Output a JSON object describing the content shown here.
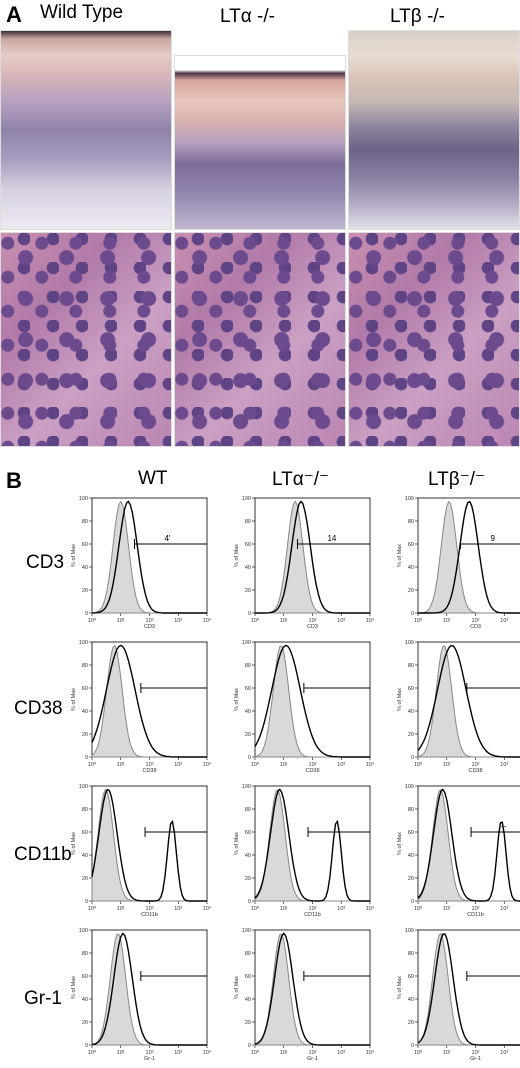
{
  "panel_a": {
    "letter": "A",
    "columns": [
      "Wild Type",
      "LTα -/-",
      "LTβ -/-"
    ]
  },
  "panel_b": {
    "letter": "B",
    "columns": [
      "WT",
      "LTα⁻/⁻",
      "LTβ⁻/⁻"
    ],
    "rows": [
      "CD3",
      "CD38",
      "CD11b",
      "Gr-1"
    ],
    "y_axis_label": "% of Max",
    "y_ticks": [
      "100",
      "80",
      "60",
      "40",
      "20",
      "0"
    ],
    "x_ticks": [
      "10⁰",
      "10¹",
      "10²",
      "10³",
      "10⁴"
    ],
    "gate_labels": [
      [
        "4'",
        "14",
        "9"
      ],
      [
        "",
        "",
        ""
      ],
      [
        "",
        "",
        "--"
      ],
      [
        "",
        "",
        ""
      ]
    ]
  },
  "chart_data": {
    "type": "histogram-grid",
    "xscale": "log",
    "xlim": [
      1,
      10000
    ],
    "ylim": [
      0,
      100
    ],
    "ylabel": "% of Max",
    "rows": [
      {
        "marker": "CD3",
        "xlabel": "CD3",
        "series": [
          {
            "control_peak": 10,
            "sample_peak": 18
          },
          {
            "control_peak": 25,
            "sample_peak": 40
          },
          {
            "control_peak": 12,
            "sample_peak": 60
          }
        ]
      },
      {
        "marker": "CD38",
        "xlabel": "CD38",
        "series": [
          {
            "control_peak": 6,
            "sample_peak": 10
          },
          {
            "control_peak": 8,
            "sample_peak": 12
          },
          {
            "control_peak": 8,
            "sample_peak": 15
          }
        ]
      },
      {
        "marker": "CD11b",
        "xlabel": "CD11b",
        "series": [
          {
            "control_peak": 3,
            "sample_peak": 600
          },
          {
            "control_peak": 6,
            "sample_peak": 700
          },
          {
            "control_peak": 6,
            "sample_peak": 800
          }
        ]
      },
      {
        "marker": "Gr-1",
        "xlabel": "Gr-1",
        "series": [
          {
            "control_peak": 8,
            "sample_peak": 12
          },
          {
            "control_peak": 8,
            "sample_peak": 10
          },
          {
            "control_peak": 6,
            "sample_peak": 8
          }
        ]
      }
    ]
  }
}
